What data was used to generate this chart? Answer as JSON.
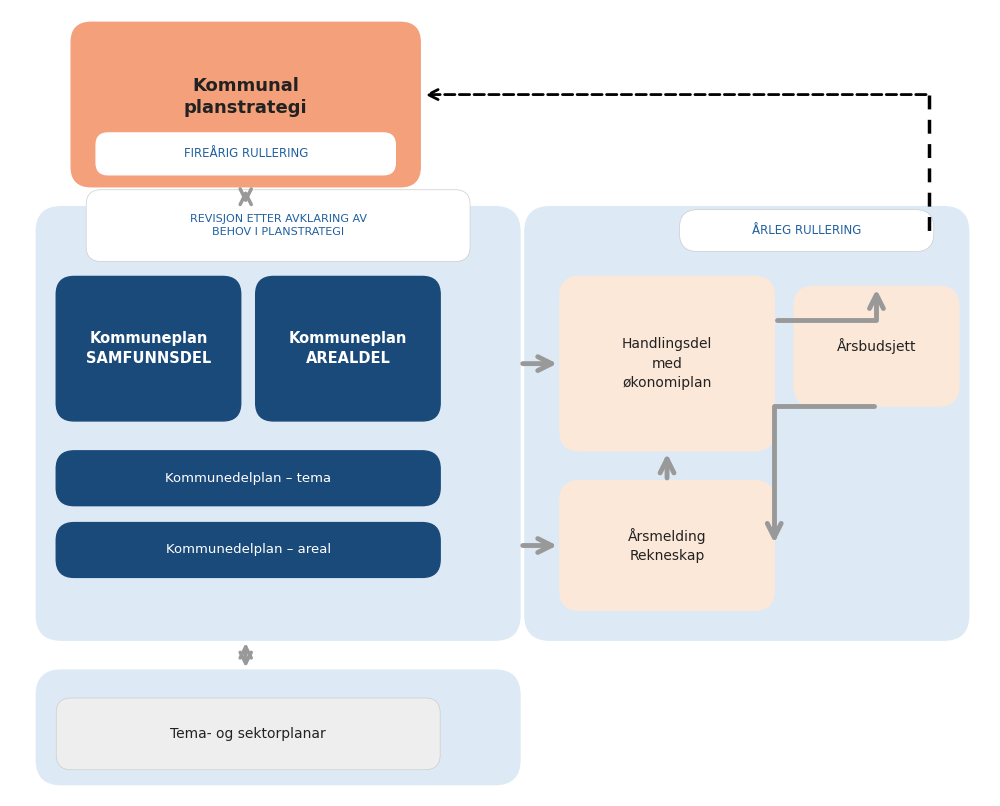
{
  "title": "",
  "bg_color": "#ffffff",
  "light_blue_bg": "#ddeaf5",
  "dark_blue_box": "#1a4a7a",
  "salmon_box": "#f4a07a",
  "peach_box": "#fce8d8",
  "white_box": "#ffffff",
  "light_gray_box": "#eeeeee",
  "gray_arrow": "#999999",
  "blue_text": "#2060a0",
  "dark_text": "#222222",
  "white_text": "#ffffff",
  "label_fireårig": "FIREÅRIG RULLERING",
  "label_kommunal": "Kommunal\nplanstrategi",
  "label_revisjon": "REVISJON ETTER AVKLARING AV\nBEHOV I PLANSTRATEGI",
  "label_samfunnsdel": "Kommuneplan\nSAMFUNNSDEL",
  "label_arealdel": "Kommuneplan\nAREALDEL",
  "label_delplan_tema": "Kommunedelplan – tema",
  "label_delplan_areal": "Kommunedelplan – areal",
  "label_tema_sektor": "Tema- og sektorplanar",
  "label_handlingsdel": "Handlingsdel\nmed\nøkonomiplan",
  "label_arsbudsjett": "Årsbudsjett",
  "label_arsmelding": "Årsmelding\nRekneskap",
  "label_arleg": "ÅRLEG RULLERING"
}
